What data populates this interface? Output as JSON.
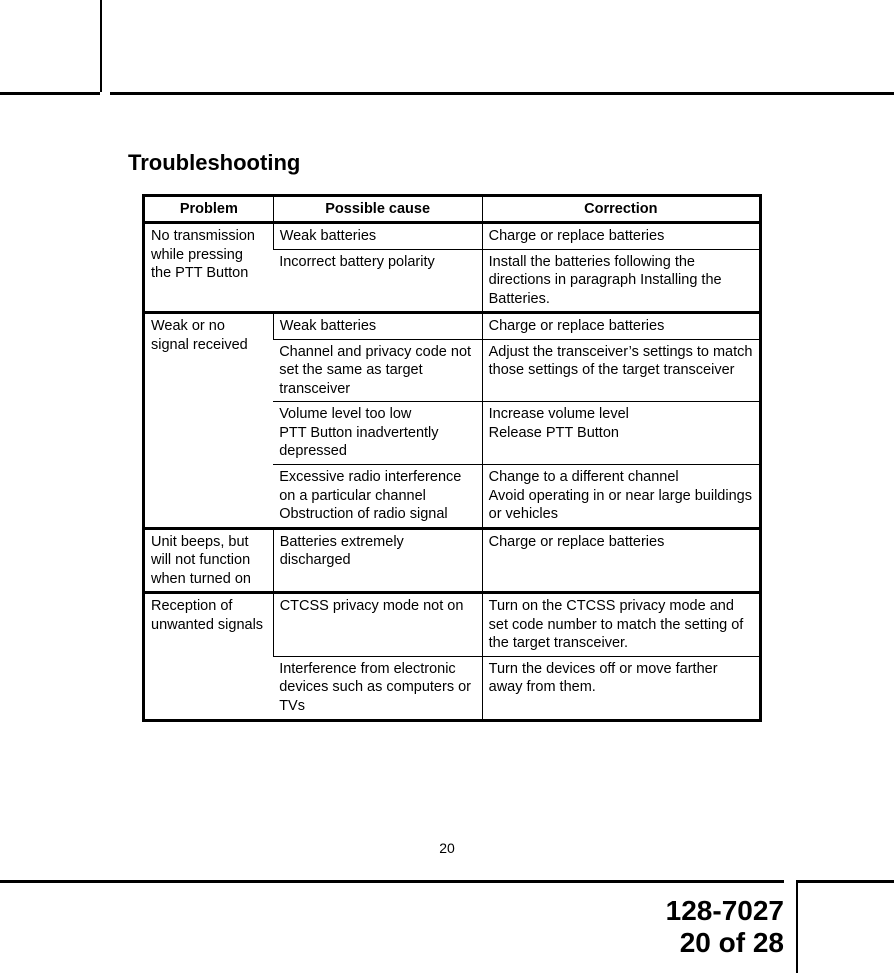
{
  "title": "Troubleshooting",
  "headers": {
    "c1": "Problem",
    "c2": "Possible cause",
    "c3": "Correction"
  },
  "rows": [
    {
      "group_start": true,
      "c1": "No transmission while pressing the PTT Button",
      "c2": "Weak batteries",
      "c3": "Charge or replace batteries",
      "rowspan1": 2
    },
    {
      "thin_sep": true,
      "c2": "Incorrect battery polarity",
      "c3": "Install the batteries following the directions in paragraph Installing the Batteries."
    },
    {
      "group_start": true,
      "c1": "Weak or no signal received",
      "c2": "Weak batteries",
      "c3": "Charge or replace batteries",
      "rowspan1": 4
    },
    {
      "thin_sep": true,
      "c2": "Channel and privacy code not set the same as target transceiver",
      "c3": "Adjust  the transceiver’s settings to match those settings of the target transceiver"
    },
    {
      "thin_sep": true,
      "c2": "Volume level too low\nPTT Button inadvertently depressed",
      "c3": "Increase volume level\nRelease PTT Button"
    },
    {
      "thin_sep": true,
      "c2": "Excessive radio interference on a particular channel\nObstruction of radio signal",
      "c3": "Change to a different channel\nAvoid operating in or near large buildings or vehicles"
    },
    {
      "group_start": true,
      "c1": "Unit beeps, but will not function when turned on",
      "c2": "Batteries extremely discharged",
      "c3": "Charge or replace batteries",
      "rowspan1": 1
    },
    {
      "group_start": true,
      "c1": "Reception of unwanted signals",
      "c2": "CTCSS privacy mode not on",
      "c3": "Turn on the CTCSS privacy mode and set code number to match the setting of the target transceiver.",
      "rowspan1": 2
    },
    {
      "thin_sep": true,
      "c2": "Interference from electronic devices such as computers or TVs",
      "c3": "Turn the devices off or move farther away from them."
    }
  ],
  "page_number": "20",
  "doc_id_line1": "128-7027",
  "doc_id_line2": "20 of 28"
}
